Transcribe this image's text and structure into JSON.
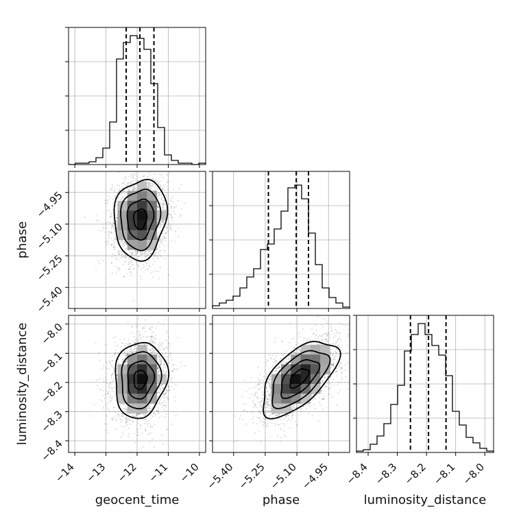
{
  "chart_data": {
    "type": "corner",
    "title": "",
    "parameters": [
      "geocent_time",
      "phase",
      "luminosity_distance"
    ],
    "axis_labels": {
      "geocent_time": "geocent_time",
      "phase": "phase",
      "luminosity_distance": "luminosity_distance"
    },
    "ranges": {
      "geocent_time": [
        -14.2,
        -9.8
      ],
      "phase": [
        -5.5,
        -4.85
      ],
      "luminosity_distance": [
        -8.44,
        -7.97
      ]
    },
    "ticks": {
      "geocent_time": [
        {
          "v": -14,
          "label": "−14"
        },
        {
          "v": -13,
          "label": "−13"
        },
        {
          "v": -12,
          "label": "−12"
        },
        {
          "v": -11,
          "label": "−11"
        },
        {
          "v": -10,
          "label": "−10"
        }
      ],
      "phase": [
        {
          "v": -5.4,
          "label": "−5.40"
        },
        {
          "v": -5.25,
          "label": "−5.25"
        },
        {
          "v": -5.1,
          "label": "−5.10"
        },
        {
          "v": -4.95,
          "label": "−4.95"
        }
      ],
      "luminosity_distance": [
        {
          "v": -8.4,
          "label": "−8.4"
        },
        {
          "v": -8.3,
          "label": "−8.3"
        },
        {
          "v": -8.2,
          "label": "−8.2"
        },
        {
          "v": -8.1,
          "label": "−8.1"
        },
        {
          "v": -8.0,
          "label": "−8.0"
        }
      ]
    },
    "grid": true,
    "quantiles": {
      "geocent_time": [
        -12.35,
        -11.91,
        -11.46
      ],
      "phase": [
        -5.235,
        -5.103,
        -5.045
      ],
      "luminosity_distance": [
        -8.255,
        -8.193,
        -8.133
      ]
    },
    "histograms": {
      "geocent_time": {
        "bins": 20,
        "counts": [
          0.0,
          0.01,
          0.01,
          0.02,
          0.05,
          0.12,
          0.31,
          0.77,
          0.89,
          0.94,
          0.92,
          0.84,
          0.59,
          0.27,
          0.07,
          0.03,
          0.01,
          0.01,
          0.0,
          0.01
        ]
      },
      "phase": {
        "bins": 20,
        "counts": [
          0.02,
          0.04,
          0.06,
          0.09,
          0.15,
          0.23,
          0.29,
          0.43,
          0.47,
          0.58,
          0.71,
          0.88,
          0.9,
          0.8,
          0.55,
          0.32,
          0.15,
          0.08,
          0.04,
          0.01
        ]
      },
      "luminosity_distance": {
        "bins": 20,
        "counts": [
          0.01,
          0.02,
          0.06,
          0.12,
          0.21,
          0.35,
          0.49,
          0.74,
          0.86,
          0.94,
          0.86,
          0.78,
          0.71,
          0.56,
          0.3,
          0.2,
          0.11,
          0.07,
          0.03,
          0.01
        ]
      }
    },
    "density_2d": [
      {
        "x": "geocent_time",
        "y": "phase",
        "x_center": -11.9,
        "y_center": -5.075,
        "x_sd": 0.42,
        "y_sd": 0.095,
        "rho": 0.1
      },
      {
        "x": "geocent_time",
        "y": "luminosity_distance",
        "x_center": -11.9,
        "y_center": -8.19,
        "x_sd": 0.42,
        "y_sd": 0.065,
        "rho": 0.1
      },
      {
        "x": "phase",
        "y": "luminosity_distance",
        "x_center": -5.09,
        "y_center": -8.185,
        "x_sd": 0.09,
        "y_sd": 0.065,
        "rho": 0.6
      }
    ],
    "contour_levels_sigma": [
      0.5,
      1.0,
      1.5,
      2.0
    ],
    "point_color": "#000000",
    "line_color": "#000000",
    "grid_color": "#b0b0b0"
  }
}
